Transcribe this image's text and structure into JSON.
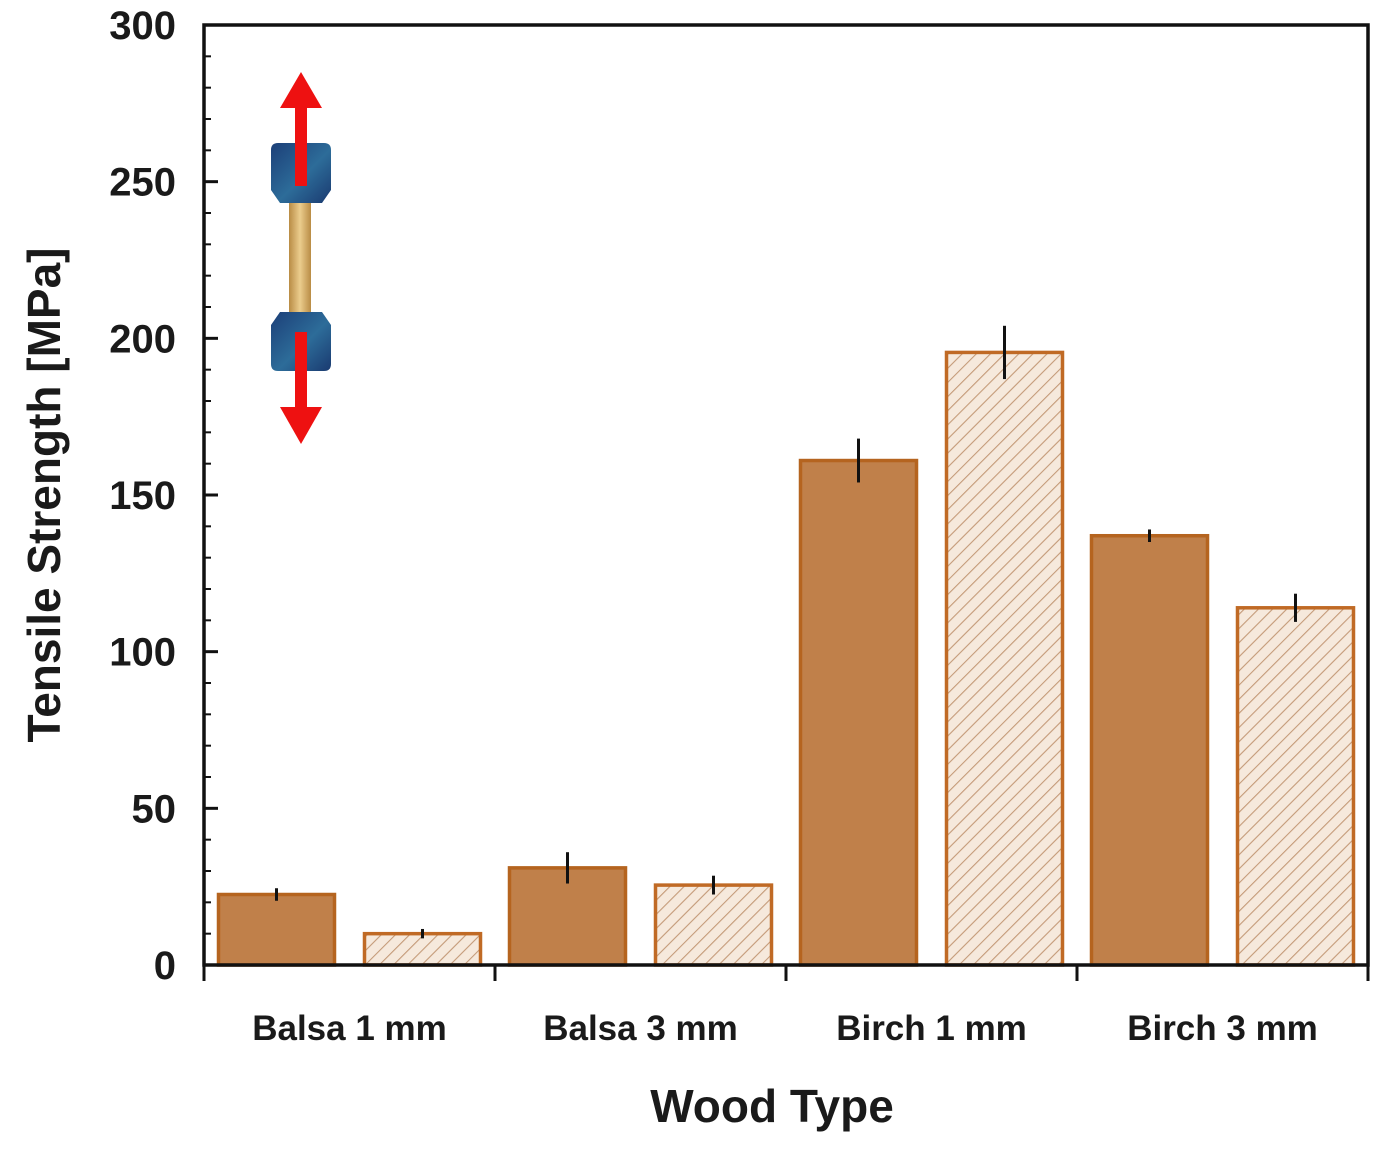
{
  "chart_data": {
    "type": "bar",
    "title": "",
    "xlabel": "Wood Type",
    "ylabel": "Tensile Strength [MPa]",
    "ylim": [
      0,
      300
    ],
    "yticks": [
      0,
      50,
      100,
      150,
      200,
      250,
      300
    ],
    "categories": [
      "Balsa 1 mm",
      "Balsa 3 mm",
      "Birch 1 mm",
      "Birch 3 mm"
    ],
    "series": [
      {
        "fill": "solid",
        "color": "#c0804a",
        "edge": "#b5641f",
        "values": [
          22.5,
          31,
          161,
          137
        ],
        "errors": [
          2,
          5,
          7,
          2
        ]
      },
      {
        "fill": "hatched",
        "color": "#f6e9dc",
        "hatch": "#c49a78",
        "edge": "#c06a25",
        "values": [
          10,
          25.5,
          195.5,
          114
        ],
        "errors": [
          1.5,
          3,
          8.5,
          4.5
        ]
      }
    ],
    "grid": false,
    "legend": "none",
    "inset_icon": "tensile-test-specimen-icon",
    "inset_colors": {
      "arrow": "#ee1111",
      "grip": "#23548a",
      "specimen": "#d9b470"
    }
  }
}
